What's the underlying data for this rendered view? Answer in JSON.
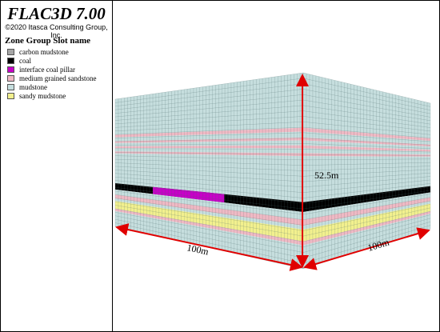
{
  "header": {
    "title": "FLAC3D 7.00",
    "copyright": "©2020 Itasca Consulting Group, Inc."
  },
  "legend": {
    "title": "Zone Group Slot name",
    "items": [
      {
        "label": "carbon mudstone",
        "color": "#a6a6a6"
      },
      {
        "label": "coal",
        "color": "#000000"
      },
      {
        "label": "interface coal pillar",
        "color": "#c800c8"
      },
      {
        "label": "medium grained sandstone",
        "color": "#efb9c4"
      },
      {
        "label": "mudstone",
        "color": "#c6dede"
      },
      {
        "label": "sandy mudstone",
        "color": "#f2f08e"
      }
    ]
  },
  "dimensions": {
    "front_width": "100m",
    "side_width": "100m",
    "height": "52.5m"
  }
}
